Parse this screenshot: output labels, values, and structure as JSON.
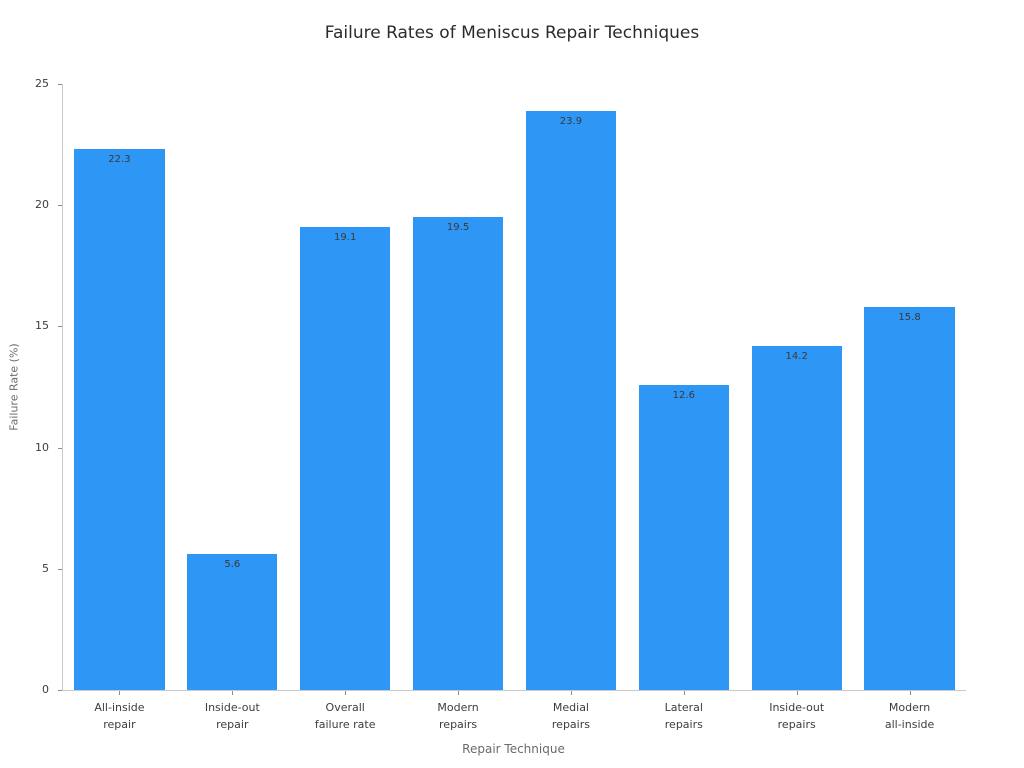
{
  "chart_data": {
    "type": "bar",
    "title": "Failure Rates of Meniscus Repair Techniques",
    "xlabel": "Repair Technique",
    "ylabel": "Failure Rate (%)",
    "categories": [
      "All-inside\nrepair",
      "Inside-out\nrepair",
      "Overall\nfailure rate",
      "Modern\nrepairs",
      "Medial\nrepairs",
      "Lateral\nrepairs",
      "Inside-out\nrepairs",
      "Modern\nall-inside"
    ],
    "values": [
      22.3,
      5.6,
      19.1,
      19.5,
      23.9,
      12.6,
      14.2,
      15.8
    ],
    "value_labels": [
      "22.3",
      "5.6",
      "19.1",
      "19.5",
      "23.9",
      "12.6",
      "14.2",
      "15.8"
    ],
    "ylim": [
      0,
      25
    ],
    "yticks": [
      0,
      5,
      10,
      15,
      20,
      25
    ],
    "bar_color": "#2E96F5",
    "grid": false,
    "legend_position": "none"
  }
}
